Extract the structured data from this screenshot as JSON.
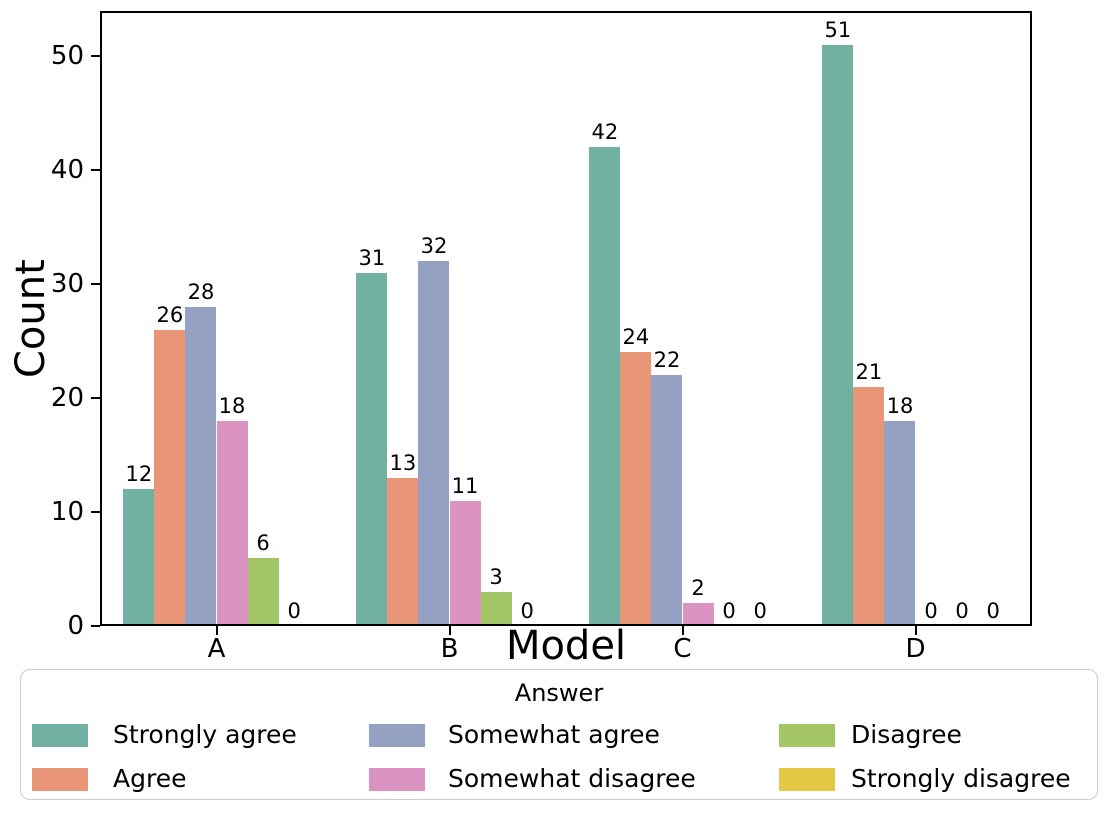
{
  "chart_data": {
    "type": "bar",
    "title": "",
    "xlabel": "Model",
    "ylabel": "Count",
    "categories": [
      "A",
      "B",
      "C",
      "D"
    ],
    "series": [
      {
        "name": "Strongly agree",
        "color": "#71b1a1",
        "values": [
          12,
          31,
          42,
          51
        ]
      },
      {
        "name": "Agree",
        "color": "#e99577",
        "values": [
          26,
          13,
          24,
          21
        ]
      },
      {
        "name": "Somewhat agree",
        "color": "#95a1c3",
        "values": [
          28,
          32,
          22,
          18
        ]
      },
      {
        "name": "Somewhat disagree",
        "color": "#db94c1",
        "values": [
          18,
          11,
          2,
          0
        ]
      },
      {
        "name": "Disagree",
        "color": "#a2c666",
        "values": [
          6,
          3,
          0,
          0
        ]
      },
      {
        "name": "Strongly disagree",
        "color": "#e2c845",
        "values": [
          0,
          0,
          0,
          0
        ]
      }
    ],
    "ylim": [
      0,
      53.95
    ],
    "yticks": [
      0,
      10,
      20,
      30,
      40,
      50
    ],
    "bar_value_labels": true,
    "grid": false,
    "legend": {
      "title": "Answer",
      "position": "bottom",
      "ncol": 3
    }
  }
}
